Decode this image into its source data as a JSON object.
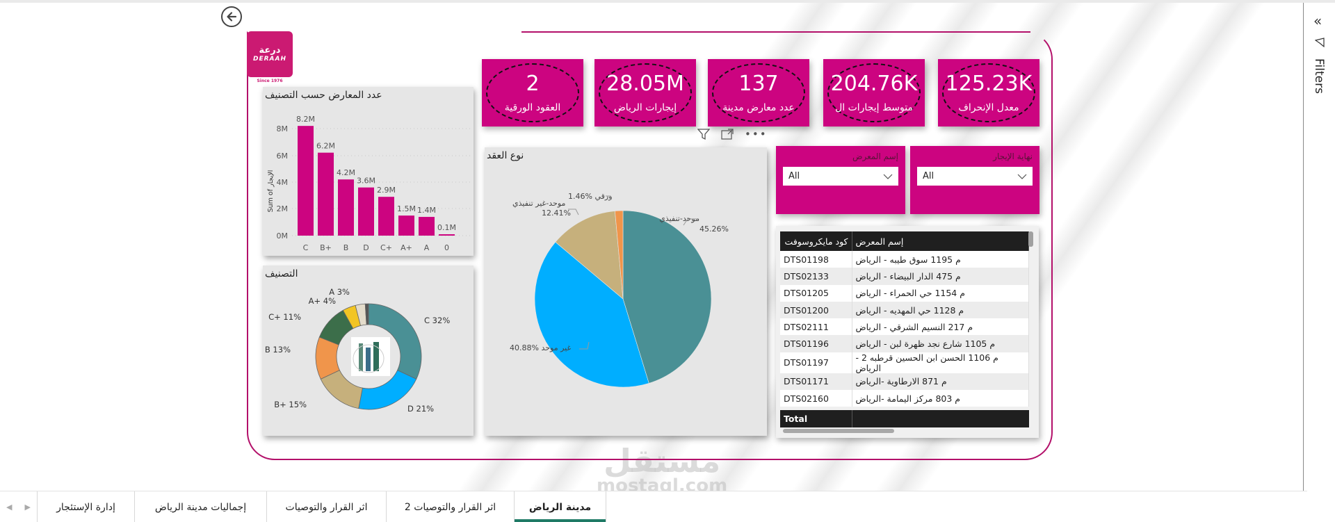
{
  "colors": {
    "brand_magenta": "#cc0480",
    "frame": "#b3106a",
    "teal": "#4a9095",
    "sky": "#00aeff",
    "tan": "#c6b07c",
    "orange": "#f0954b",
    "dark_green": "#3c6e4a",
    "yellow": "#f2c523",
    "active_tab": "#1f7a66"
  },
  "logo": {
    "arabic": "درعة",
    "english": "DERAAH",
    "since": "Since 1976"
  },
  "kpis": [
    {
      "value": "2",
      "label": "العقود الورقية"
    },
    {
      "value": "28.05M",
      "label": "إيجارات الرياض"
    },
    {
      "value": "137",
      "label": "عدد معارض مدينة"
    },
    {
      "value": "204.76K",
      "label": "متوسط إيجارات ال"
    },
    {
      "value": "125.23K",
      "label": "معدل الإنحراف"
    }
  ],
  "visual_header_icons": [
    "filter-icon",
    "focus-mode-icon",
    "more-options-icon"
  ],
  "slicers": [
    {
      "title": "إسم المعرض",
      "value": "All"
    },
    {
      "title": "نهاية الإيجار",
      "value": "All"
    }
  ],
  "table": {
    "columns": [
      "كود مايكروسوفت",
      "إسم المعرض"
    ],
    "rows": [
      [
        "DTS01198",
        "م 1195 سوق طيبه - الرياض"
      ],
      [
        "DTS02133",
        "م 475 الدار البيضاء - الرياض"
      ],
      [
        "DTS01205",
        "م 1154 حي الحمراء - الرياض"
      ],
      [
        "DTS01200",
        "م 1128 حي المهديه - الرياض"
      ],
      [
        "DTS02111",
        "م 217 النسيم الشرقي - الرياض"
      ],
      [
        "DTS01196",
        "م 1105 شارع نجد ظهرة لبن - الرياض"
      ],
      [
        "DTS01197",
        "م 1106 الحسن ابن الحسين قرطبه 2 - الرياض"
      ],
      [
        "DTS01171",
        "م 871 الارطاوية -الرياض"
      ],
      [
        "DTS02160",
        "م 803 مركز اليمامة -الرياض"
      ]
    ],
    "total_label": "Total"
  },
  "chart_data": [
    {
      "type": "bar",
      "title": "عدد المعارض حسب التصنيف",
      "xlabel": "",
      "ylabel": "Sum of الإيجار",
      "categories": [
        "C",
        "B+",
        "B",
        "D",
        "C+",
        "A+",
        "A",
        "0"
      ],
      "values": [
        8.2,
        6.2,
        4.2,
        3.6,
        2.9,
        1.5,
        1.4,
        0.1
      ],
      "data_labels": [
        "8.2M",
        "6.2M",
        "4.2M",
        "3.6M",
        "2.9M",
        "1.5M",
        "1.4M",
        "0.1M"
      ],
      "y_ticks": [
        "0M",
        "2M",
        "4M",
        "6M",
        "8M"
      ],
      "ylim": [
        0,
        9
      ],
      "grid": true,
      "color": "#cc0480"
    },
    {
      "type": "pie",
      "title": "نوع العقد",
      "categories": [
        "موحد-تنفيذي",
        "غير موحد",
        "موحد-غير تنفيذي",
        "ورقي"
      ],
      "values": [
        45.26,
        40.88,
        12.41,
        1.46
      ],
      "labels": [
        "موحد-تنفيذي 45.26%",
        "40.88% غير موحد",
        "موحد-غير تنفيذي 12.41%",
        "1.46% ورقي"
      ],
      "colors": [
        "#4a9095",
        "#00aeff",
        "#c6b07c",
        "#f0954b"
      ]
    },
    {
      "type": "pie",
      "subtype": "donut",
      "title": "التصنيف",
      "categories": [
        "C",
        "D",
        "B+",
        "B",
        "C+",
        "A+",
        "A",
        "0"
      ],
      "values": [
        32,
        21,
        15,
        13,
        11,
        4,
        3,
        1
      ],
      "labels": [
        "C 32%",
        "D 21%",
        "B+ 15%",
        "B 13%",
        "C+ 11%",
        "A+ 4%",
        "A 3%",
        ""
      ],
      "colors": [
        "#4a9095",
        "#00aeff",
        "#c6b07c",
        "#f0954b",
        "#3c6e4a",
        "#f2c523",
        "#e4dccb",
        "#555555"
      ]
    }
  ],
  "tabs": [
    {
      "label": "مدينة الرياض",
      "active": true
    },
    {
      "label": "اثر القرار والتوصيات 2",
      "active": false
    },
    {
      "label": "اثر القرار والتوصيات",
      "active": false
    },
    {
      "label": "إجماليات مدينة الرياض",
      "active": false
    },
    {
      "label": "إدارة الإستئجار",
      "active": false
    }
  ],
  "filters_pane": {
    "label": "Filters"
  },
  "watermark": {
    "arabic": "مستقل",
    "latin": "mostaql.com"
  }
}
